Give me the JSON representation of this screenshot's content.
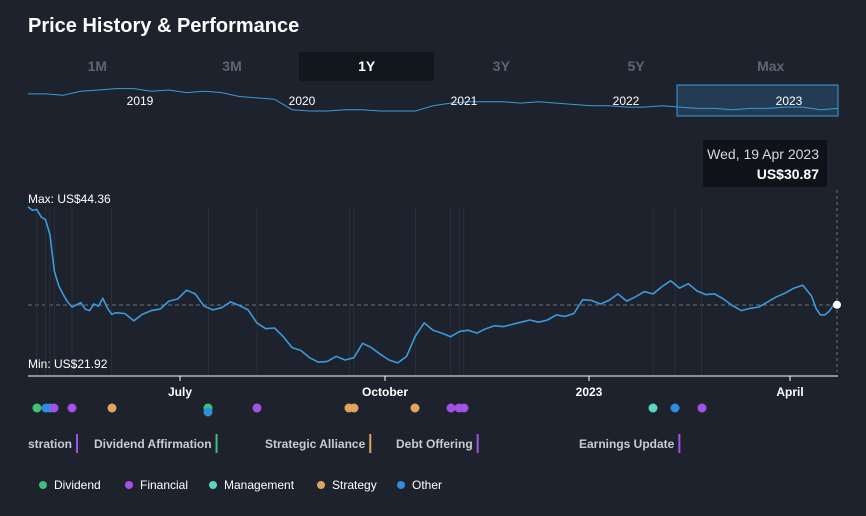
{
  "header": {
    "title": "Price History & Performance"
  },
  "range_tabs": [
    {
      "label": "1M",
      "active": false
    },
    {
      "label": "3M",
      "active": false
    },
    {
      "label": "1Y",
      "active": true
    },
    {
      "label": "3Y",
      "active": false
    },
    {
      "label": "5Y",
      "active": false
    },
    {
      "label": "Max",
      "active": false
    }
  ],
  "tooltip": {
    "date": "Wed, 19 Apr 2023",
    "value": "US$30.87"
  },
  "colors": {
    "line": "#3a9ae0",
    "Dividend": "#3fc07a",
    "Financial": "#a352e6",
    "Management": "#5bd6c4",
    "Strategy": "#e0a45e",
    "Other": "#2e8de0"
  },
  "chart_data": {
    "type": "line",
    "title": "Price History & Performance",
    "currency": "US$",
    "max_label": "Max: US$44.36",
    "min_label": "Min: US$21.92",
    "ylim": [
      21.92,
      44.36
    ],
    "reference_value": 30.87,
    "x_ticks": [
      "July",
      "October",
      "2023",
      "April"
    ],
    "series": [
      {
        "name": "Price",
        "points": [
          [
            0.0,
            44.4
          ],
          [
            0.01,
            43.9
          ],
          [
            0.02,
            44.0
          ],
          [
            0.03,
            43.0
          ],
          [
            0.04,
            42.6
          ],
          [
            0.05,
            40.5
          ],
          [
            0.06,
            35.5
          ],
          [
            0.07,
            33.5
          ],
          [
            0.08,
            32.3
          ],
          [
            0.09,
            31.3
          ],
          [
            0.1,
            30.6
          ],
          [
            0.11,
            30.9
          ],
          [
            0.12,
            31.2
          ],
          [
            0.13,
            30.3
          ],
          [
            0.14,
            30.1
          ],
          [
            0.15,
            31.0
          ],
          [
            0.16,
            30.7
          ],
          [
            0.17,
            31.8
          ],
          [
            0.18,
            30.5
          ],
          [
            0.19,
            29.6
          ],
          [
            0.2,
            29.8
          ],
          [
            0.22,
            29.7
          ],
          [
            0.24,
            28.7
          ],
          [
            0.26,
            29.6
          ],
          [
            0.28,
            30.1
          ],
          [
            0.3,
            30.3
          ],
          [
            0.32,
            31.4
          ],
          [
            0.34,
            31.7
          ],
          [
            0.36,
            32.9
          ],
          [
            0.38,
            32.4
          ],
          [
            0.4,
            30.7
          ],
          [
            0.42,
            30.2
          ],
          [
            0.44,
            30.5
          ],
          [
            0.46,
            31.3
          ],
          [
            0.48,
            30.8
          ],
          [
            0.5,
            30.2
          ],
          [
            0.52,
            28.4
          ],
          [
            0.54,
            27.6
          ],
          [
            0.56,
            27.7
          ],
          [
            0.58,
            26.5
          ],
          [
            0.6,
            25.0
          ],
          [
            0.62,
            24.6
          ],
          [
            0.64,
            23.6
          ],
          [
            0.66,
            23.0
          ],
          [
            0.68,
            23.1
          ],
          [
            0.7,
            23.8
          ],
          [
            0.72,
            23.3
          ],
          [
            0.74,
            23.6
          ],
          [
            0.76,
            25.6
          ],
          [
            0.78,
            25.0
          ],
          [
            0.8,
            24.1
          ],
          [
            0.82,
            23.3
          ],
          [
            0.84,
            22.9
          ],
          [
            0.86,
            23.8
          ],
          [
            0.88,
            26.6
          ],
          [
            0.9,
            28.4
          ],
          [
            0.92,
            27.4
          ],
          [
            0.94,
            27.0
          ],
          [
            0.96,
            26.5
          ],
          [
            0.98,
            27.2
          ],
          [
            1.0,
            27.4
          ],
          [
            1.02,
            27.0
          ],
          [
            1.04,
            27.6
          ],
          [
            1.06,
            28.0
          ],
          [
            1.08,
            27.9
          ],
          [
            1.1,
            28.2
          ],
          [
            1.12,
            28.5
          ],
          [
            1.14,
            28.8
          ],
          [
            1.16,
            28.5
          ],
          [
            1.18,
            28.8
          ],
          [
            1.2,
            29.5
          ],
          [
            1.22,
            29.3
          ],
          [
            1.24,
            29.7
          ],
          [
            1.26,
            31.6
          ],
          [
            1.28,
            31.5
          ],
          [
            1.3,
            31.0
          ],
          [
            1.32,
            31.5
          ],
          [
            1.34,
            32.4
          ],
          [
            1.36,
            31.4
          ],
          [
            1.38,
            32.0
          ],
          [
            1.4,
            32.7
          ],
          [
            1.42,
            32.4
          ],
          [
            1.44,
            33.4
          ],
          [
            1.46,
            34.2
          ],
          [
            1.48,
            33.2
          ],
          [
            1.5,
            33.8
          ],
          [
            1.52,
            32.8
          ],
          [
            1.54,
            32.3
          ],
          [
            1.56,
            32.4
          ],
          [
            1.58,
            31.7
          ],
          [
            1.6,
            30.8
          ],
          [
            1.62,
            30.1
          ],
          [
            1.64,
            30.4
          ],
          [
            1.66,
            30.6
          ],
          [
            1.68,
            31.3
          ],
          [
            1.7,
            32.0
          ],
          [
            1.72,
            32.5
          ],
          [
            1.74,
            33.2
          ],
          [
            1.76,
            33.6
          ],
          [
            1.78,
            32.1
          ],
          [
            1.79,
            30.4
          ],
          [
            1.8,
            29.5
          ],
          [
            1.81,
            29.5
          ],
          [
            1.82,
            30.0
          ],
          [
            1.83,
            30.9
          ],
          [
            1.84,
            30.9
          ]
        ]
      }
    ],
    "events": [
      {
        "category": "Dividend",
        "t": 0.02
      },
      {
        "category": "Other",
        "t": 0.04
      },
      {
        "category": "Other",
        "t": 0.05
      },
      {
        "category": "Financial",
        "t": 0.06
      },
      {
        "category": "Financial",
        "t": 0.1
      },
      {
        "category": "Strategy",
        "t": 0.19
      },
      {
        "category": "Dividend",
        "t": 0.41
      },
      {
        "category": "Other",
        "t": 0.41
      },
      {
        "category": "Financial",
        "t": 0.52
      },
      {
        "category": "Strategy",
        "t": 0.73
      },
      {
        "category": "Strategy",
        "t": 0.74
      },
      {
        "category": "Strategy",
        "t": 0.88
      },
      {
        "category": "Financial",
        "t": 0.96
      },
      {
        "category": "Financial",
        "t": 0.98
      },
      {
        "category": "Financial",
        "t": 0.99
      },
      {
        "category": "Management",
        "t": 1.42
      },
      {
        "category": "Other",
        "t": 1.47
      },
      {
        "category": "Financial",
        "t": 1.53
      }
    ],
    "event_labels": [
      {
        "text": "stration",
        "category": "Financial"
      },
      {
        "text": "Dividend Affirmation",
        "category": "Dividend"
      },
      {
        "text": "Strategic Alliance",
        "category": "Strategy"
      },
      {
        "text": "Debt Offering",
        "category": "Financial"
      },
      {
        "text": "Earnings Update",
        "category": "Financial"
      }
    ],
    "legend": [
      "Dividend",
      "Financial",
      "Management",
      "Strategy",
      "Other"
    ]
  },
  "navigator": {
    "years": [
      "2019",
      "2020",
      "2021",
      "2022",
      "2023"
    ],
    "selected_year": "2023",
    "series": [
      44,
      44,
      43,
      46,
      47,
      48,
      48,
      46,
      47,
      45,
      46,
      45,
      42,
      41,
      40,
      32,
      31,
      31,
      32,
      32,
      31,
      31,
      31,
      35,
      37,
      38,
      38,
      38,
      37,
      38,
      37,
      36,
      35,
      35,
      34,
      34,
      35,
      34,
      33,
      33,
      32,
      33,
      33,
      34,
      34,
      32,
      33
    ]
  }
}
